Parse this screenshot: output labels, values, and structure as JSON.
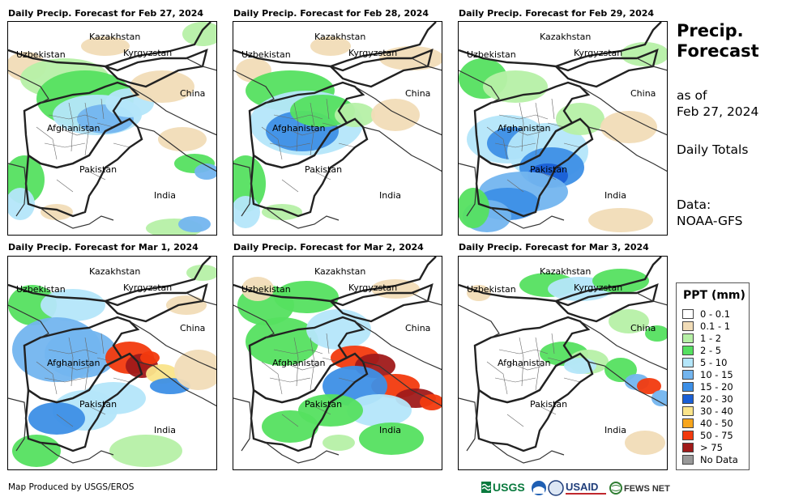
{
  "panels": [
    {
      "title": "Daily Precip. Forecast for Feb 27, 2024"
    },
    {
      "title": "Daily Precip. Forecast for Feb 28, 2024"
    },
    {
      "title": "Daily Precip. Forecast for Feb 29, 2024"
    },
    {
      "title": "Daily Precip. Forecast for Mar 1, 2024"
    },
    {
      "title": "Daily Precip. Forecast for Mar 2, 2024"
    },
    {
      "title": "Daily Precip. Forecast for Mar 3, 2024"
    }
  ],
  "place_labels": {
    "kazakhstan": "Kazakhstan",
    "uzbekistan": "Uzbekistan",
    "kyrgyzstan": "Kyrgyzstan",
    "china": "China",
    "afghanistan": "Afghanistan",
    "pakistan": "Pakistan",
    "india": "India"
  },
  "side": {
    "title_line1": "Precip.",
    "title_line2": "Forecast",
    "asof_line1": "as of",
    "asof_line2": "Feb 27, 2024",
    "totals": "Daily Totals",
    "data_line1": "Data:",
    "data_line2": "NOAA-GFS"
  },
  "legend": {
    "title": "PPT (mm)",
    "items": [
      {
        "label": "0 - 0.1",
        "color": "#ffffff"
      },
      {
        "label": "0.1 - 1",
        "color": "#f1dcb7"
      },
      {
        "label": "1 - 2",
        "color": "#b6f0a6"
      },
      {
        "label": "2 - 5",
        "color": "#55e060"
      },
      {
        "label": "5 - 10",
        "color": "#b4e6fa"
      },
      {
        "label": "10 - 15",
        "color": "#73b5ef"
      },
      {
        "label": "15 - 20",
        "color": "#3d8fe6"
      },
      {
        "label": "20 - 30",
        "color": "#1a5fd6"
      },
      {
        "label": "30 - 40",
        "color": "#fae48a"
      },
      {
        "label": "40 - 50",
        "color": "#f7a51c"
      },
      {
        "label": "50 - 75",
        "color": "#f23a0e"
      },
      {
        "label": "> 75",
        "color": "#a01a1a"
      },
      {
        "label": "No Data",
        "color": "#999999"
      }
    ]
  },
  "credit": "Map Produced by USGS/EROS",
  "logos": {
    "usgs": "USGS",
    "usaid": "USAID",
    "fews": "FEWS NET"
  }
}
